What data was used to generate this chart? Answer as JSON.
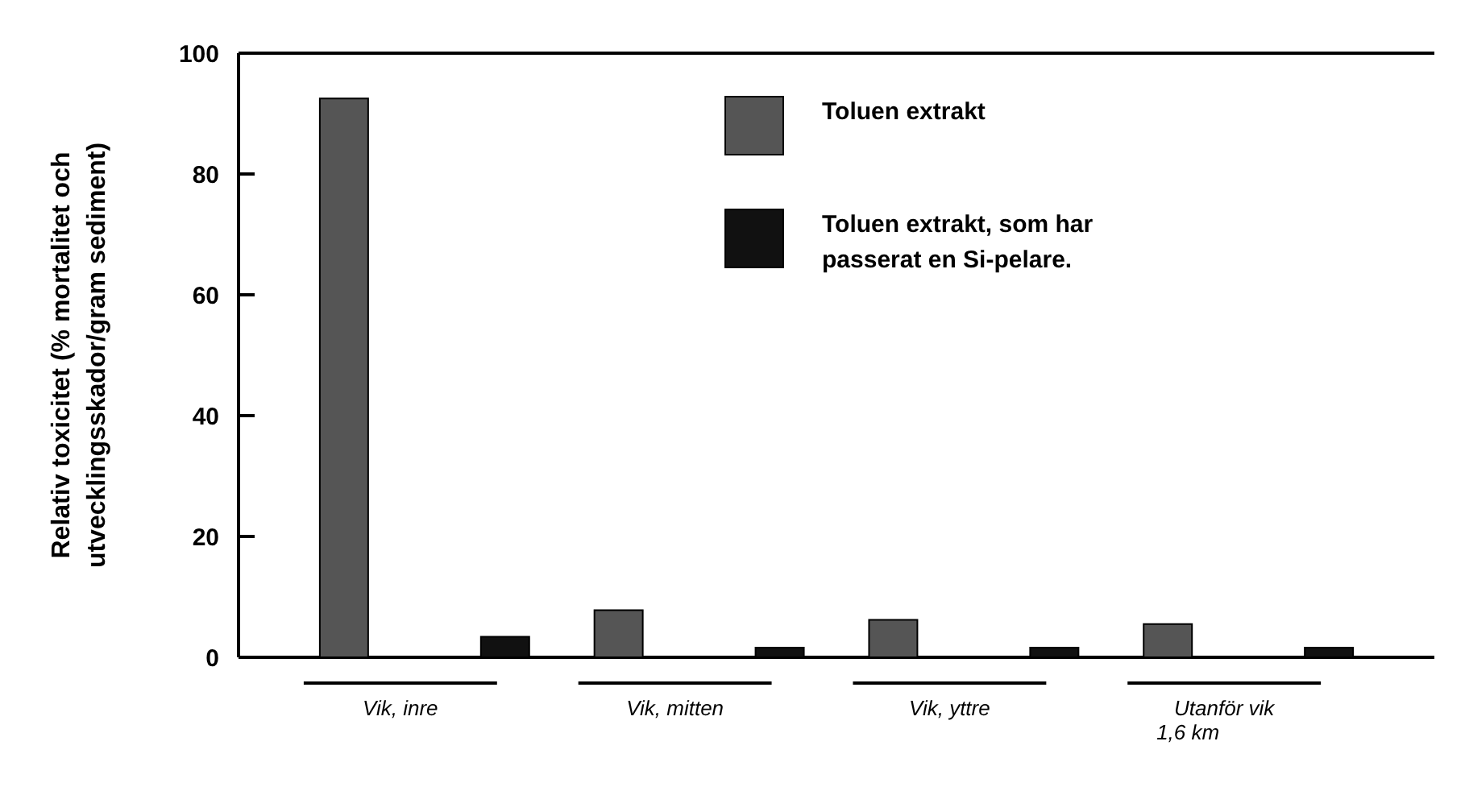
{
  "chart_data": {
    "type": "bar",
    "ylabel": "Relativ toxicitet (% mortalitet och\nutvecklingsskador/gram sediment)",
    "categories": [
      "Vik, inre",
      "Vik, mitten",
      "Vik, yttre",
      "Utanför vik\n1,6 km"
    ],
    "series": [
      {
        "name": "Toluen extrakt",
        "color": "#555555",
        "values": [
          92.5,
          7.8,
          6.2,
          5.5
        ]
      },
      {
        "name": "Toluen extrakt, som har\npasserat en Si-pelare.",
        "color": "#111111",
        "values": [
          3.4,
          1.6,
          1.6,
          1.6
        ]
      }
    ],
    "ylim": [
      0,
      100
    ],
    "yticks": [
      0,
      20,
      40,
      60,
      80,
      100
    ],
    "legend": "top right"
  }
}
